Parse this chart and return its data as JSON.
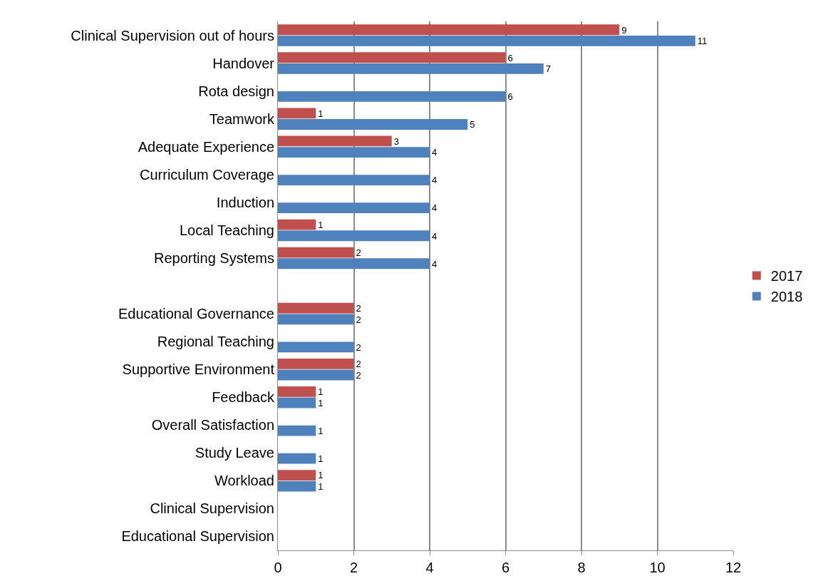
{
  "chart_data": {
    "type": "bar",
    "orientation": "horizontal",
    "categories": [
      "Clinical Supervision out of hours",
      "Handover",
      "Rota design",
      "Teamwork",
      "Adequate Experience",
      "Curriculum Coverage",
      "Induction",
      "Local Teaching",
      "Reporting Systems",
      null,
      "Educational Governance",
      "Regional Teaching",
      "Supportive Environment",
      "Feedback",
      "Overall Satisfaction",
      "Study Leave",
      "Workload",
      "Clinical Supervision",
      "Educational Supervision"
    ],
    "series": [
      {
        "name": "2017",
        "color": "#c0504d",
        "values": [
          9,
          6,
          null,
          1,
          3,
          null,
          null,
          1,
          2,
          null,
          2,
          null,
          2,
          1,
          null,
          null,
          1,
          null,
          null
        ]
      },
      {
        "name": "2018",
        "color": "#4f81bd",
        "values": [
          11,
          7,
          6,
          5,
          4,
          4,
          4,
          4,
          4,
          null,
          2,
          2,
          2,
          1,
          1,
          1,
          1,
          null,
          null
        ]
      }
    ],
    "xlim": [
      0,
      12
    ],
    "xticks": [
      0,
      2,
      4,
      6,
      8,
      10,
      12
    ],
    "grid": "x",
    "legend": "right",
    "data_labels": true
  }
}
